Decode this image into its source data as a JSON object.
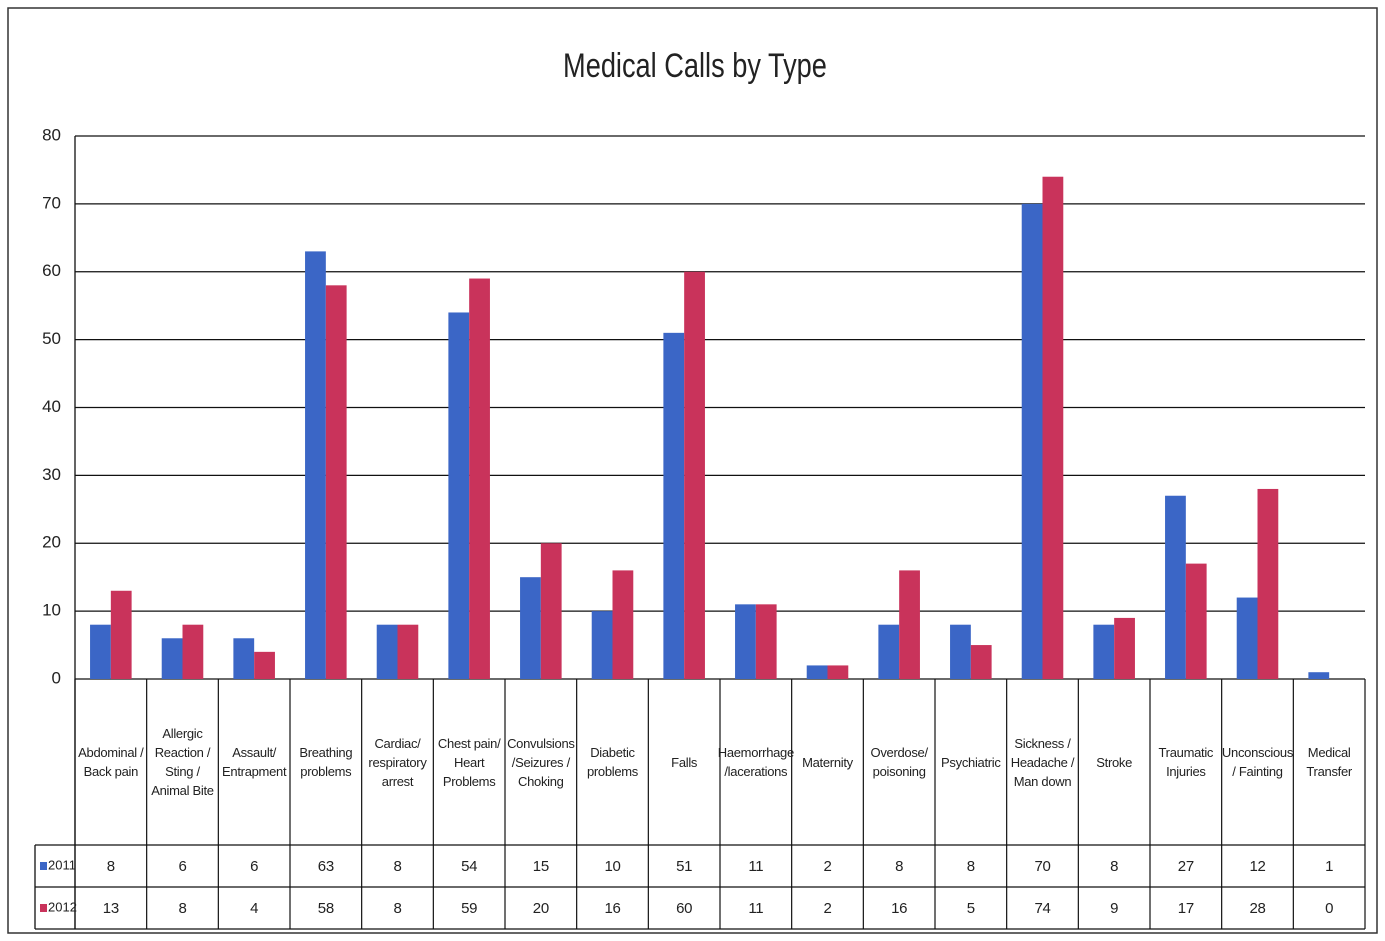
{
  "chart_data": {
    "type": "bar",
    "title": "Medical Calls by Type",
    "categories": [
      "Abdominal / Back pain",
      "Allergic Reaction / Sting / Animal Bite",
      "Assault/ Entrapment",
      "Breathing problems",
      "Cardiac/ respiratory arrest",
      "Chest pain/ Heart Problems",
      "Convulsions /Seizures / Choking",
      "Diabetic problems",
      "Falls",
      "Haemorrhage /lacerations",
      "Maternity",
      "Overdose/ poisoning",
      "Psychiatric",
      "Sickness / Headache / Man down",
      "Stroke",
      "Traumatic Injuries",
      "Unconscious / Fainting",
      "Medical Transfer"
    ],
    "series": [
      {
        "name": "2011",
        "color": "#3b66c6",
        "values": [
          8,
          6,
          6,
          63,
          8,
          54,
          15,
          10,
          51,
          11,
          2,
          8,
          8,
          70,
          8,
          27,
          12,
          1
        ]
      },
      {
        "name": "2012",
        "color": "#c9335b",
        "values": [
          13,
          8,
          4,
          58,
          8,
          59,
          20,
          16,
          60,
          11,
          2,
          16,
          5,
          74,
          9,
          17,
          28,
          0
        ]
      }
    ],
    "ylim": [
      0,
      80
    ],
    "yticks": [
      0,
      10,
      20,
      30,
      40,
      50,
      60,
      70,
      80
    ],
    "grid": true
  }
}
